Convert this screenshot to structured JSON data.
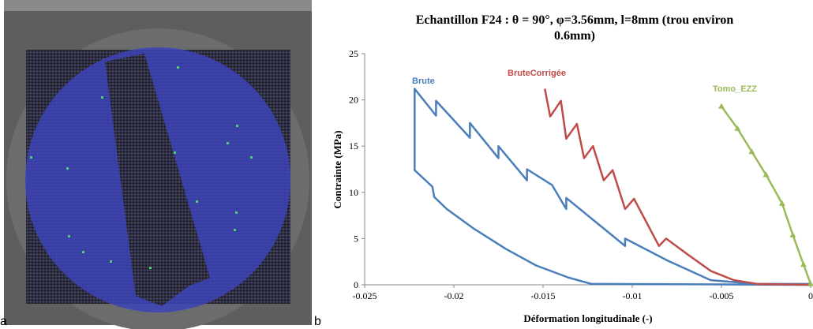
{
  "panel_labels": [
    "a",
    "b"
  ],
  "chart_data": {
    "type": "line",
    "title": "Echantillon F24 : θ = 90°, φ=3.56mm, l=8mm (trou environ",
    "subtitle": "0.6mm)",
    "x_label": "Déformation longitudinale (-)",
    "y_label": "Contrainte (MPa)",
    "xlim": [
      -0.025,
      0
    ],
    "ylim": [
      0,
      25
    ],
    "xticks": [
      -0.025,
      -0.02,
      -0.015,
      -0.01,
      -0.005,
      0
    ],
    "yticks": [
      0,
      5,
      10,
      15,
      20,
      25
    ],
    "grid": false,
    "series": [
      {
        "name": "Brute",
        "color": "#4a7ebb",
        "marker": "none",
        "x": [
          0,
          -0.0123,
          -0.0136,
          -0.0154,
          -0.0171,
          -0.0189,
          -0.0204,
          -0.0211,
          -0.0212,
          -0.0222,
          -0.0222,
          -0.021,
          -0.021,
          -0.0191,
          -0.0191,
          -0.0175,
          -0.0175,
          -0.0159,
          -0.0159,
          -0.0145,
          -0.0137,
          -0.0137,
          -0.0104,
          -0.0104,
          -0.008,
          -0.0056,
          -0.003,
          0
        ],
        "values": [
          0,
          0.1,
          0.8,
          2.1,
          3.9,
          6.1,
          8.2,
          9.5,
          10.6,
          12.4,
          21.2,
          18.3,
          19.9,
          15.9,
          17.5,
          13.7,
          15.0,
          11.3,
          12.5,
          10.8,
          8.2,
          9.4,
          4.2,
          5.0,
          2.6,
          0.5,
          0.1,
          0.1
        ]
      },
      {
        "name": "BruteCorrigée",
        "color": "#be4b48",
        "marker": "none",
        "x": [
          -0.0149,
          -0.0146,
          -0.014,
          -0.0137,
          -0.0131,
          -0.0127,
          -0.0122,
          -0.0116,
          -0.0111,
          -0.0104,
          -0.0099,
          -0.0085,
          -0.0081,
          -0.0069,
          -0.0056,
          -0.0043,
          -0.003,
          0
        ],
        "values": [
          21.2,
          18.2,
          19.9,
          15.8,
          17.4,
          13.7,
          15.0,
          11.3,
          12.4,
          8.2,
          9.3,
          4.2,
          5.0,
          3.3,
          1.5,
          0.5,
          0.1,
          0
        ]
      },
      {
        "name": "Tomo_EZZ",
        "color": "#9bbb59",
        "marker": "triangle",
        "x": [
          -0.005,
          -0.0041,
          -0.0033,
          -0.0025,
          -0.0016,
          -0.001,
          -0.0004,
          0
        ],
        "values": [
          19.3,
          16.9,
          14.4,
          11.9,
          8.8,
          5.4,
          2.2,
          0.1
        ]
      }
    ]
  }
}
